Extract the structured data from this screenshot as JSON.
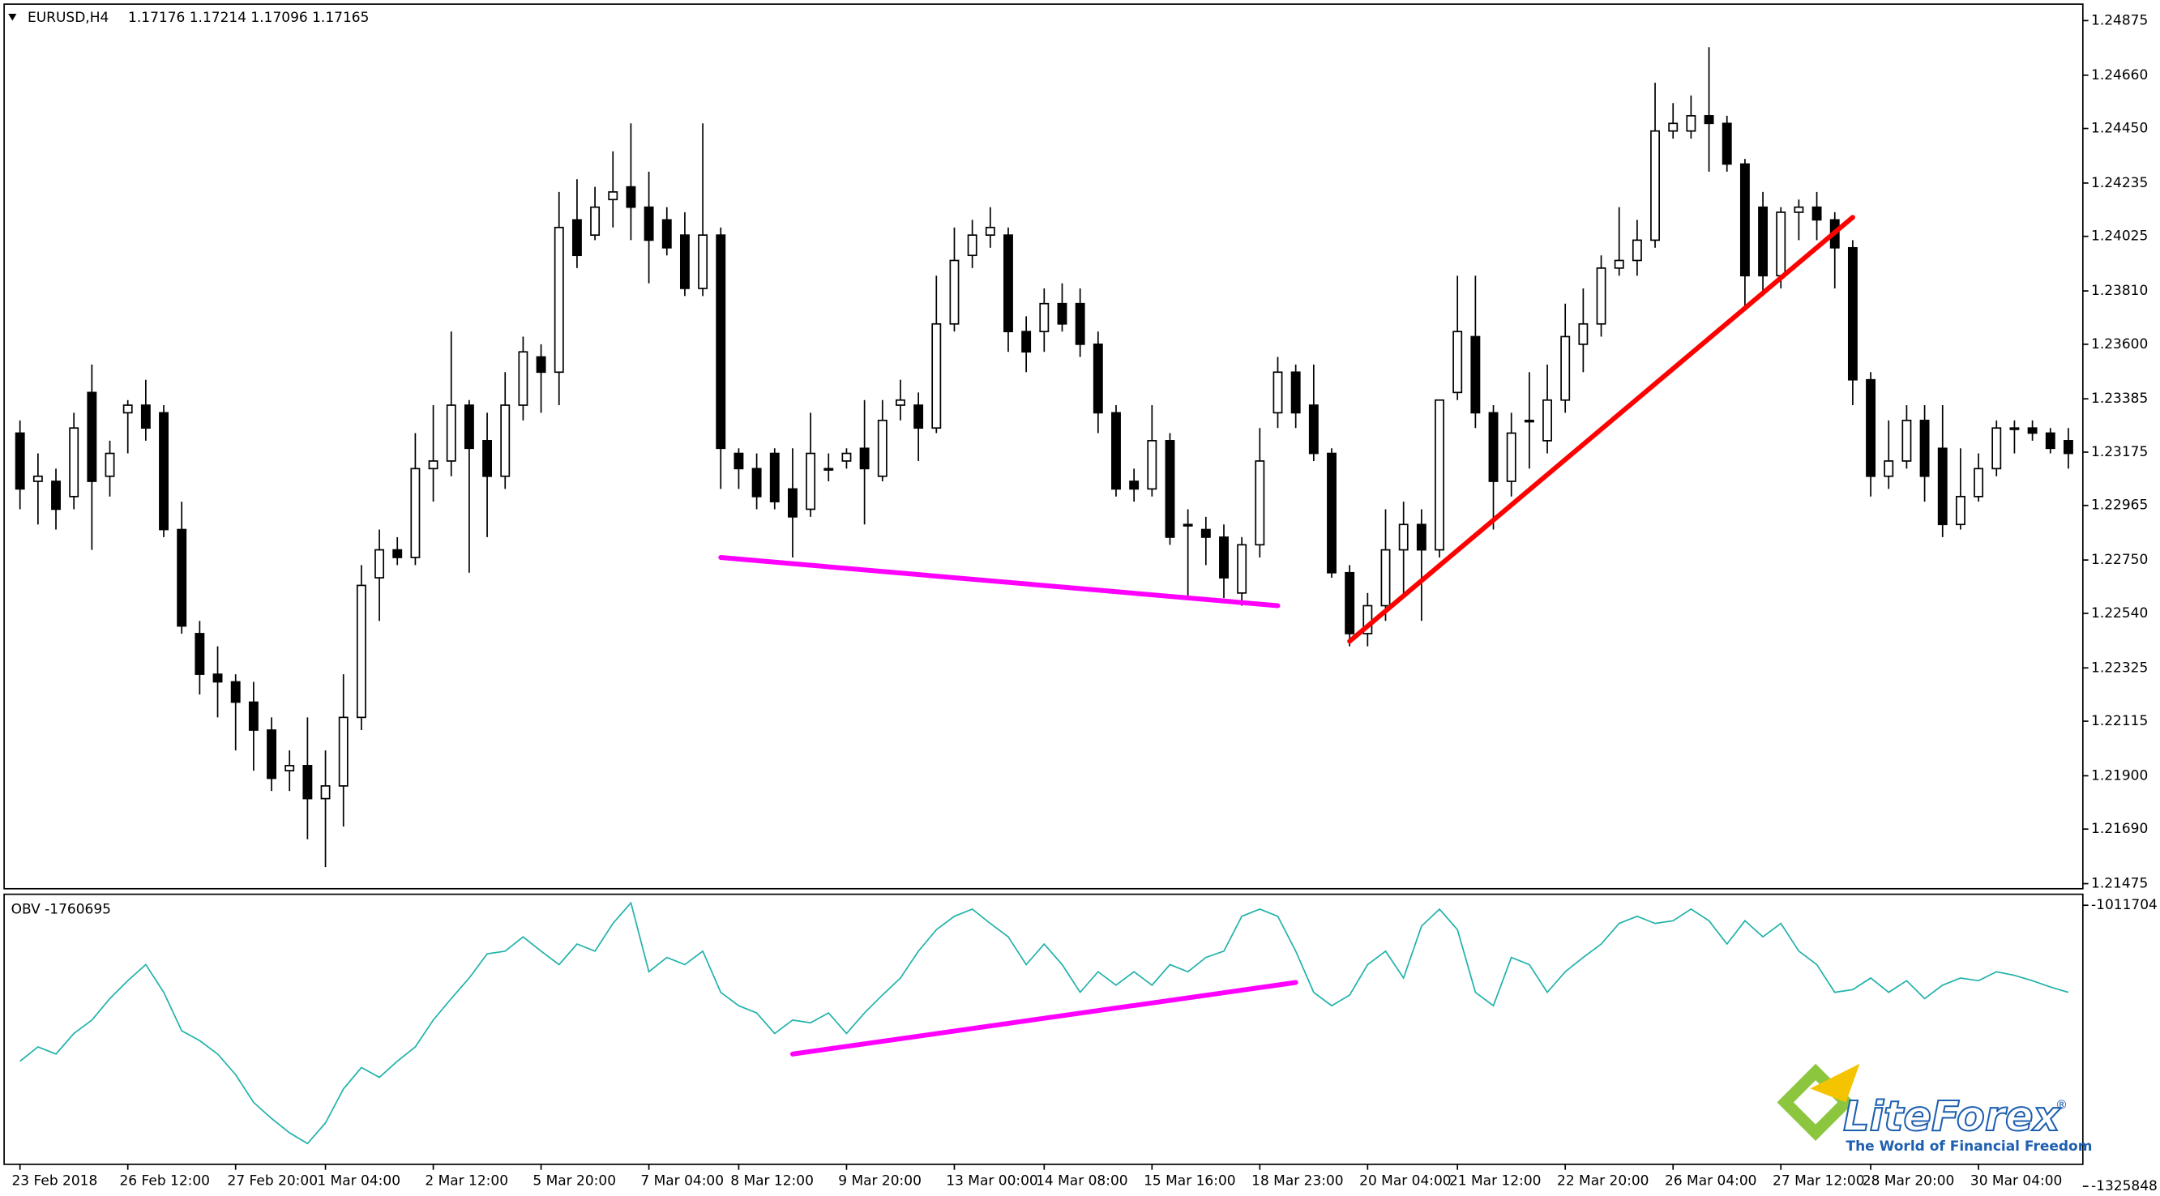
{
  "chart_data": [
    {
      "type": "candlestick",
      "title": "EURUSD,H4",
      "subtitle": "1.17176 1.17214 1.17096 1.17165",
      "up_color": "#ffffff",
      "down_color": "#000000",
      "grid": false,
      "categories": [
        "23 Feb 2018",
        null,
        null,
        null,
        null,
        null,
        "26 Feb 12:00",
        null,
        null,
        null,
        null,
        null,
        "27 Feb 20:00",
        null,
        null,
        null,
        null,
        "1 Mar 04:00",
        null,
        null,
        null,
        null,
        null,
        "2 Mar 12:00",
        null,
        null,
        null,
        null,
        null,
        "5 Mar 20:00",
        null,
        null,
        null,
        null,
        null,
        "7 Mar 04:00",
        null,
        null,
        null,
        null,
        "8 Mar 12:00",
        null,
        null,
        null,
        null,
        null,
        "9 Mar 20:00",
        null,
        null,
        null,
        null,
        null,
        "13 Mar 00:00",
        null,
        null,
        null,
        null,
        "14 Mar 08:00",
        null,
        null,
        null,
        null,
        null,
        "15 Mar 16:00",
        null,
        null,
        null,
        null,
        null,
        "18 Mar 23:00",
        null,
        null,
        null,
        null,
        null,
        "20 Mar 04:00",
        null,
        null,
        null,
        null,
        "21 Mar 12:00",
        null,
        null,
        null,
        null,
        null,
        "22 Mar 20:00",
        null,
        null,
        null,
        null,
        null,
        "26 Mar 04:00",
        null,
        null,
        null,
        null,
        null,
        "27 Mar 12:00",
        null,
        null,
        null,
        null,
        "28 Mar 20:00",
        null,
        null,
        null,
        null,
        null,
        "30 Mar 04:00",
        null,
        null,
        null,
        null,
        null
      ],
      "open": [
        1.2325,
        1.2306,
        1.2306,
        1.23,
        1.2341,
        1.2308,
        1.2333,
        1.2336,
        1.2333,
        1.2287,
        1.2246,
        1.223,
        1.2227,
        1.2219,
        1.2208,
        1.2192,
        1.2194,
        1.2181,
        1.2186,
        1.2213,
        1.2268,
        1.2279,
        1.2276,
        1.2311,
        1.2314,
        1.2336,
        1.2322,
        1.2308,
        1.2336,
        1.2355,
        1.2349,
        1.2409,
        1.2403,
        1.2417,
        1.2422,
        1.2414,
        1.2409,
        1.2403,
        1.2382,
        1.2403,
        1.2317,
        1.2311,
        1.2317,
        1.2303,
        1.2295,
        1.2311,
        1.2314,
        1.2319,
        1.2308,
        1.2336,
        1.2336,
        1.2327,
        1.2368,
        1.2395,
        1.2403,
        1.2403,
        1.2365,
        1.2365,
        1.2376,
        1.2376,
        1.236,
        1.2333,
        1.2306,
        1.2303,
        1.2322,
        1.2289,
        1.2287,
        1.2284,
        1.2262,
        1.2281,
        1.2333,
        1.2349,
        1.2336,
        1.2317,
        1.227,
        1.2246,
        1.2257,
        1.2279,
        1.2289,
        1.2279,
        1.2341,
        1.2363,
        1.2333,
        1.2306,
        1.233,
        1.2322,
        1.2338,
        1.236,
        1.2368,
        1.239,
        1.2393,
        1.2401,
        1.2444,
        1.2444,
        1.245,
        1.2447,
        1.2431,
        1.2414,
        1.2387,
        1.2412,
        1.2414,
        1.2409,
        1.2398,
        1.2346,
        1.2308,
        1.2314,
        1.233,
        1.2319,
        1.2289,
        1.23,
        1.2311,
        1.2327,
        1.2327,
        1.2325,
        1.2322
      ],
      "high": [
        1.233,
        1.2317,
        1.2311,
        1.2333,
        1.2352,
        1.2322,
        1.2338,
        1.2346,
        1.2336,
        1.2298,
        1.2251,
        1.2241,
        1.223,
        1.2227,
        1.2213,
        1.22,
        1.2213,
        1.22,
        1.223,
        1.2273,
        1.2287,
        1.2284,
        1.2325,
        1.2336,
        1.2365,
        1.2338,
        1.2333,
        1.2349,
        1.2363,
        1.236,
        1.242,
        1.2425,
        1.2422,
        1.2436,
        1.2447,
        1.2428,
        1.2414,
        1.2412,
        1.2447,
        1.2406,
        1.2319,
        1.2317,
        1.2319,
        1.2319,
        1.2333,
        1.2317,
        1.2319,
        1.2338,
        1.2338,
        1.2346,
        1.2341,
        1.2387,
        1.2406,
        1.2409,
        1.2414,
        1.2406,
        1.2371,
        1.2382,
        1.2384,
        1.2382,
        1.2365,
        1.2336,
        1.2311,
        1.2336,
        1.2325,
        1.2295,
        1.2292,
        1.2289,
        1.2284,
        1.2327,
        1.2355,
        1.2352,
        1.2352,
        1.2319,
        1.2273,
        1.2262,
        1.2295,
        1.2298,
        1.2295,
        1.2338,
        1.2387,
        1.2387,
        1.2336,
        1.2333,
        1.2349,
        1.2352,
        1.2376,
        1.2382,
        1.2395,
        1.2414,
        1.2409,
        1.2463,
        1.2455,
        1.2458,
        1.2477,
        1.245,
        1.2433,
        1.242,
        1.2414,
        1.2417,
        1.242,
        1.2412,
        1.2401,
        1.2349,
        1.233,
        1.2336,
        1.2336,
        1.2336,
        1.2319,
        1.2317,
        1.233,
        1.233,
        1.233,
        1.2327,
        1.2327
      ],
      "low": [
        1.2295,
        1.2289,
        1.2287,
        1.2295,
        1.2279,
        1.23,
        1.2317,
        1.2322,
        1.2284,
        1.2246,
        1.2222,
        1.2213,
        1.22,
        1.2192,
        1.2184,
        1.2184,
        1.2165,
        1.2154,
        1.217,
        1.2208,
        1.2251,
        1.2273,
        1.2273,
        1.2298,
        1.2308,
        1.227,
        1.2284,
        1.2303,
        1.233,
        1.2333,
        1.2336,
        1.239,
        1.2401,
        1.2406,
        1.2401,
        1.2384,
        1.2395,
        1.2379,
        1.2379,
        1.2303,
        1.2303,
        1.2295,
        1.2295,
        1.2276,
        1.2292,
        1.2306,
        1.2311,
        1.2289,
        1.2306,
        1.233,
        1.2314,
        1.2325,
        1.2365,
        1.239,
        1.2398,
        1.2357,
        1.2349,
        1.2357,
        1.2365,
        1.2355,
        1.2325,
        1.23,
        1.2298,
        1.23,
        1.2281,
        1.226,
        1.2273,
        1.226,
        1.2257,
        1.2276,
        1.2327,
        1.2327,
        1.2314,
        1.2268,
        1.2241,
        1.2241,
        1.2251,
        1.226,
        1.2251,
        1.2276,
        1.2338,
        1.2327,
        1.2287,
        1.23,
        1.2311,
        1.2317,
        1.2333,
        1.2349,
        1.2363,
        1.2387,
        1.2387,
        1.2398,
        1.2441,
        1.2441,
        1.2428,
        1.2428,
        1.2374,
        1.2379,
        1.2382,
        1.2401,
        1.2401,
        1.2382,
        1.2336,
        1.23,
        1.2303,
        1.2311,
        1.2298,
        1.2284,
        1.2287,
        1.2298,
        1.2308,
        1.2317,
        1.2322,
        1.2317,
        1.2311
      ],
      "close": [
        1.2303,
        1.2308,
        1.2295,
        1.2327,
        1.2306,
        1.2317,
        1.2336,
        1.2327,
        1.2287,
        1.2249,
        1.223,
        1.2227,
        1.2219,
        1.2208,
        1.2189,
        1.2194,
        1.2181,
        1.2186,
        1.2213,
        1.2265,
        1.2279,
        1.2276,
        1.2311,
        1.2314,
        1.2336,
        1.2319,
        1.2308,
        1.2336,
        1.2357,
        1.2349,
        1.2406,
        1.2395,
        1.2414,
        1.242,
        1.2414,
        1.2401,
        1.2398,
        1.2382,
        1.2403,
        1.2319,
        1.2311,
        1.23,
        1.2298,
        1.2292,
        1.2317,
        1.2311,
        1.2317,
        1.2311,
        1.233,
        1.2338,
        1.2327,
        1.2368,
        1.2393,
        1.2403,
        1.2406,
        1.2365,
        1.2357,
        1.2376,
        1.2368,
        1.236,
        1.2333,
        1.2303,
        1.2303,
        1.2322,
        1.2284,
        1.2289,
        1.2284,
        1.2268,
        1.2281,
        1.2314,
        1.2349,
        1.2333,
        1.2317,
        1.227,
        1.2246,
        1.2257,
        1.2279,
        1.2289,
        1.2279,
        1.2338,
        1.2365,
        1.2333,
        1.2306,
        1.2325,
        1.233,
        1.2338,
        1.2363,
        1.2368,
        1.239,
        1.2393,
        1.2401,
        1.2444,
        1.2447,
        1.245,
        1.2447,
        1.2431,
        1.2387,
        1.2387,
        1.2412,
        1.2414,
        1.2409,
        1.2398,
        1.2346,
        1.2308,
        1.2314,
        1.233,
        1.2308,
        1.2289,
        1.23,
        1.2311,
        1.2327,
        1.2327,
        1.2325,
        1.2319,
        1.2317
      ],
      "ylim": [
        1.21455,
        1.24929
      ],
      "yticks": [
        1.24875,
        {
          "value": 1.2466,
          "label": "1.24660"
        },
        {
          "value": 1.2445,
          "label": "1.24450"
        },
        1.24235,
        1.24025,
        {
          "value": 1.2381,
          "label": "1.23810"
        },
        {
          "value": 1.236,
          "label": "1.23600"
        },
        1.23385,
        1.23175,
        1.22965,
        {
          "value": 1.2275,
          "label": "1.22750"
        },
        {
          "value": 1.2254,
          "label": "1.22540"
        },
        1.22325,
        1.22115,
        {
          "value": 1.219,
          "label": "1.21900"
        },
        {
          "value": 1.2169,
          "label": "1.21690"
        },
        1.21475
      ],
      "trendlines": [
        {
          "color": "#ff00ff",
          "x": [
            39,
            70
          ],
          "y": [
            1.2276,
            1.2257
          ]
        },
        {
          "color": "#ff0000",
          "x": [
            74,
            102
          ],
          "y": [
            1.2243,
            1.241
          ]
        }
      ]
    },
    {
      "type": "line",
      "title": "OBV -1760695",
      "color": "#20b2aa",
      "values": [
        -1186000,
        -1170000,
        -1178000,
        -1155000,
        -1140000,
        -1116000,
        -1096000,
        -1078000,
        -1109000,
        -1152000,
        -1163000,
        -1178000,
        -1201000,
        -1232000,
        -1250000,
        -1266000,
        -1278000,
        -1255000,
        -1217000,
        -1193000,
        -1204000,
        -1186000,
        -1170000,
        -1140000,
        -1116000,
        -1093000,
        -1066000,
        -1063000,
        -1047000,
        -1063000,
        -1078000,
        -1055000,
        -1063000,
        -1032000,
        -1009000,
        -1086000,
        -1070000,
        -1078000,
        -1063000,
        -1109000,
        -1124000,
        -1132000,
        -1155000,
        -1140000,
        -1143000,
        -1132000,
        -1155000,
        -1132000,
        -1112000,
        -1093000,
        -1063000,
        -1039000,
        -1024000,
        -1016000,
        -1032000,
        -1047000,
        -1078000,
        -1055000,
        -1078000,
        -1109000,
        -1086000,
        -1101000,
        -1086000,
        -1101000,
        -1078000,
        -1086000,
        -1070000,
        -1063000,
        -1024000,
        -1016000,
        -1024000,
        -1063000,
        -1109000,
        -1124000,
        -1112000,
        -1078000,
        -1063000,
        -1093000,
        -1035000,
        -1016000,
        -1039000,
        -1109000,
        -1124000,
        -1070000,
        -1078000,
        -1109000,
        -1086000,
        -1070000,
        -1055000,
        -1032000,
        -1024000,
        -1032000,
        -1029000,
        -1016000,
        -1029000,
        -1055000,
        -1029000,
        -1047000,
        -1032000,
        -1063000,
        -1078000,
        -1109000,
        -1106000,
        -1093000,
        -1109000,
        -1096000,
        -1116000,
        -1101000,
        -1093000,
        -1096000,
        -1086000,
        -1090000,
        -1096000,
        -1103000,
        -1109000
      ],
      "ylim": [
        -1325848,
        -1011704
      ],
      "yticks": [
        -1011704,
        -1325848
      ],
      "trendlines": [
        {
          "color": "#ff00ff",
          "x": [
            43,
            71
          ],
          "y": [
            -1178000,
            -1098000
          ]
        }
      ]
    }
  ],
  "logo": {
    "name": "LiteForex",
    "mark": "®",
    "tagline": "The World of Financial Freedom"
  }
}
